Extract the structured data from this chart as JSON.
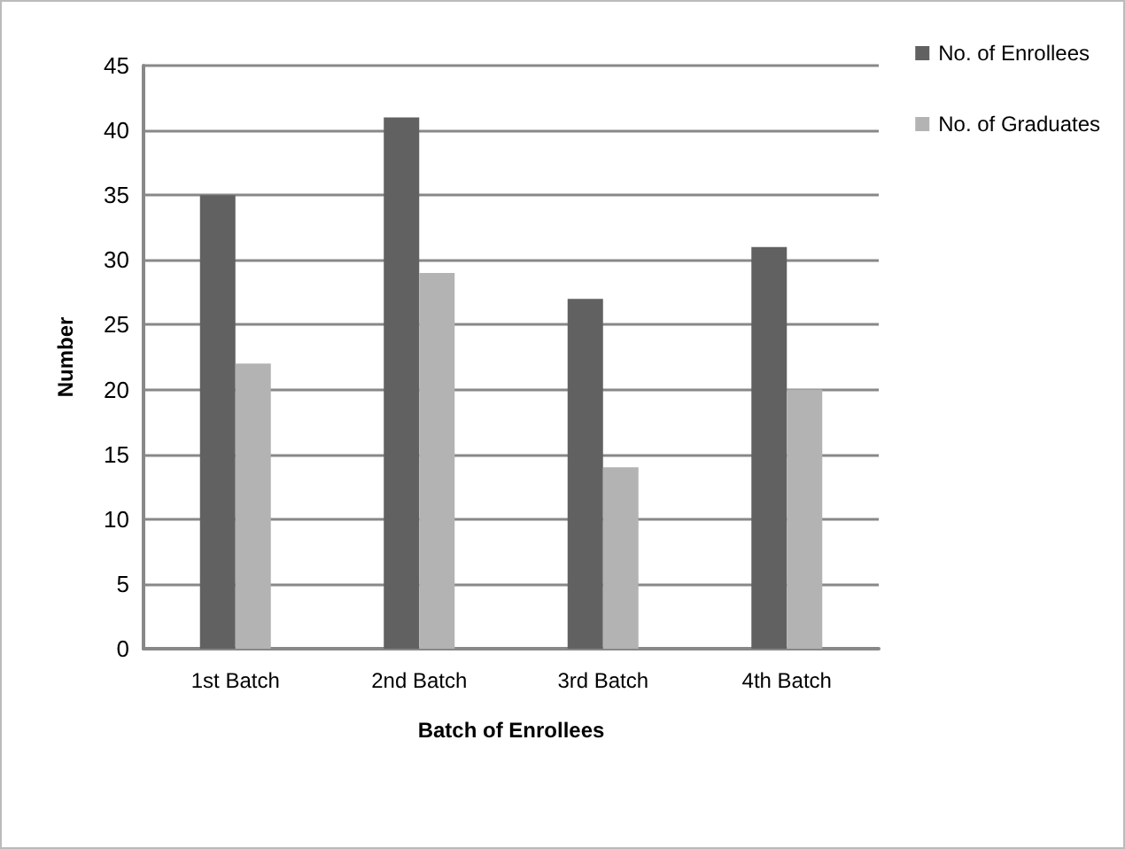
{
  "chart_data": {
    "type": "bar",
    "xlabel": "Batch of Enrollees",
    "ylabel": "Number",
    "categories": [
      "1st Batch",
      "2nd Batch",
      "3rd Batch",
      "4th Batch"
    ],
    "series": [
      {
        "name": "No. of Enrollees",
        "color": "#616161",
        "values": [
          35,
          41,
          27,
          31
        ]
      },
      {
        "name": "No. of Graduates",
        "color": "#b3b3b3",
        "values": [
          22,
          29,
          14,
          20
        ]
      }
    ],
    "ylim": [
      0,
      45
    ],
    "yticks": [
      0,
      5,
      10,
      15,
      20,
      25,
      30,
      35,
      40,
      45
    ],
    "grid": "y",
    "legend": "right"
  }
}
